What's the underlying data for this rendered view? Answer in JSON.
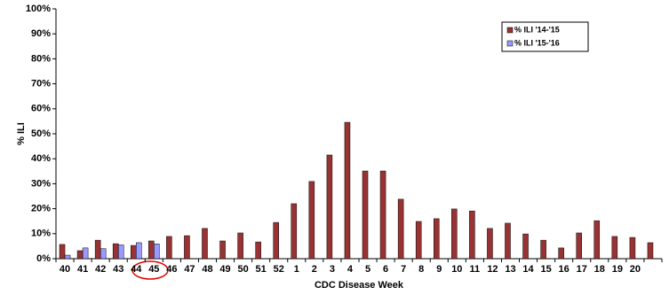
{
  "chart_data": {
    "type": "bar",
    "x_label": "CDC Disease Week",
    "y_label": "% ILI",
    "categories": [
      "40",
      "41",
      "42",
      "43",
      "44",
      "45",
      "46",
      "47",
      "48",
      "49",
      "50",
      "51",
      "52",
      "1",
      "2",
      "3",
      "4",
      "5",
      "6",
      "7",
      "8",
      "9",
      "10",
      "11",
      "12",
      "13",
      "14",
      "15",
      "16",
      "17",
      "18",
      "19",
      "20",
      null
    ],
    "series": [
      {
        "name": "% ILI '14-'15",
        "color": "#993333",
        "values": [
          5.7,
          3.2,
          7.4,
          6.0,
          5.3,
          7.1,
          8.9,
          9.2,
          12.1,
          7.1,
          10.3,
          6.7,
          14.5,
          22.0,
          30.9,
          41.5,
          54.6,
          35.1,
          35.1,
          23.8,
          14.9,
          16.0,
          19.9,
          19.1,
          12.1,
          14.2,
          9.9,
          7.4,
          4.3,
          10.3,
          15.2,
          8.9,
          8.5,
          6.4
        ]
      },
      {
        "name": "% ILI '15-'16",
        "color": "#9999ff",
        "values": [
          1.4,
          4.3,
          4.0,
          5.5,
          6.4,
          5.9,
          null,
          null,
          null,
          null,
          null,
          null,
          null,
          null,
          null,
          null,
          null,
          null,
          null,
          null,
          null,
          null,
          null,
          null,
          null,
          null,
          null,
          null,
          null,
          null,
          null,
          null,
          null,
          null
        ]
      }
    ],
    "ylim": [
      0,
      100
    ],
    "yticks": [
      {
        "value": 0,
        "label": "0%"
      },
      {
        "value": 10,
        "label": "10%"
      },
      {
        "value": 20,
        "label": "20%"
      },
      {
        "value": 30,
        "label": "30%"
      },
      {
        "value": 40,
        "label": "40%"
      },
      {
        "value": 50,
        "label": "50%"
      },
      {
        "value": 60,
        "label": "60%"
      },
      {
        "value": 70,
        "label": "70%"
      },
      {
        "value": 80,
        "label": "80%"
      },
      {
        "value": 90,
        "label": "90%"
      },
      {
        "value": 100,
        "label": "100%"
      }
    ],
    "grid": false,
    "legend": "top-right"
  }
}
